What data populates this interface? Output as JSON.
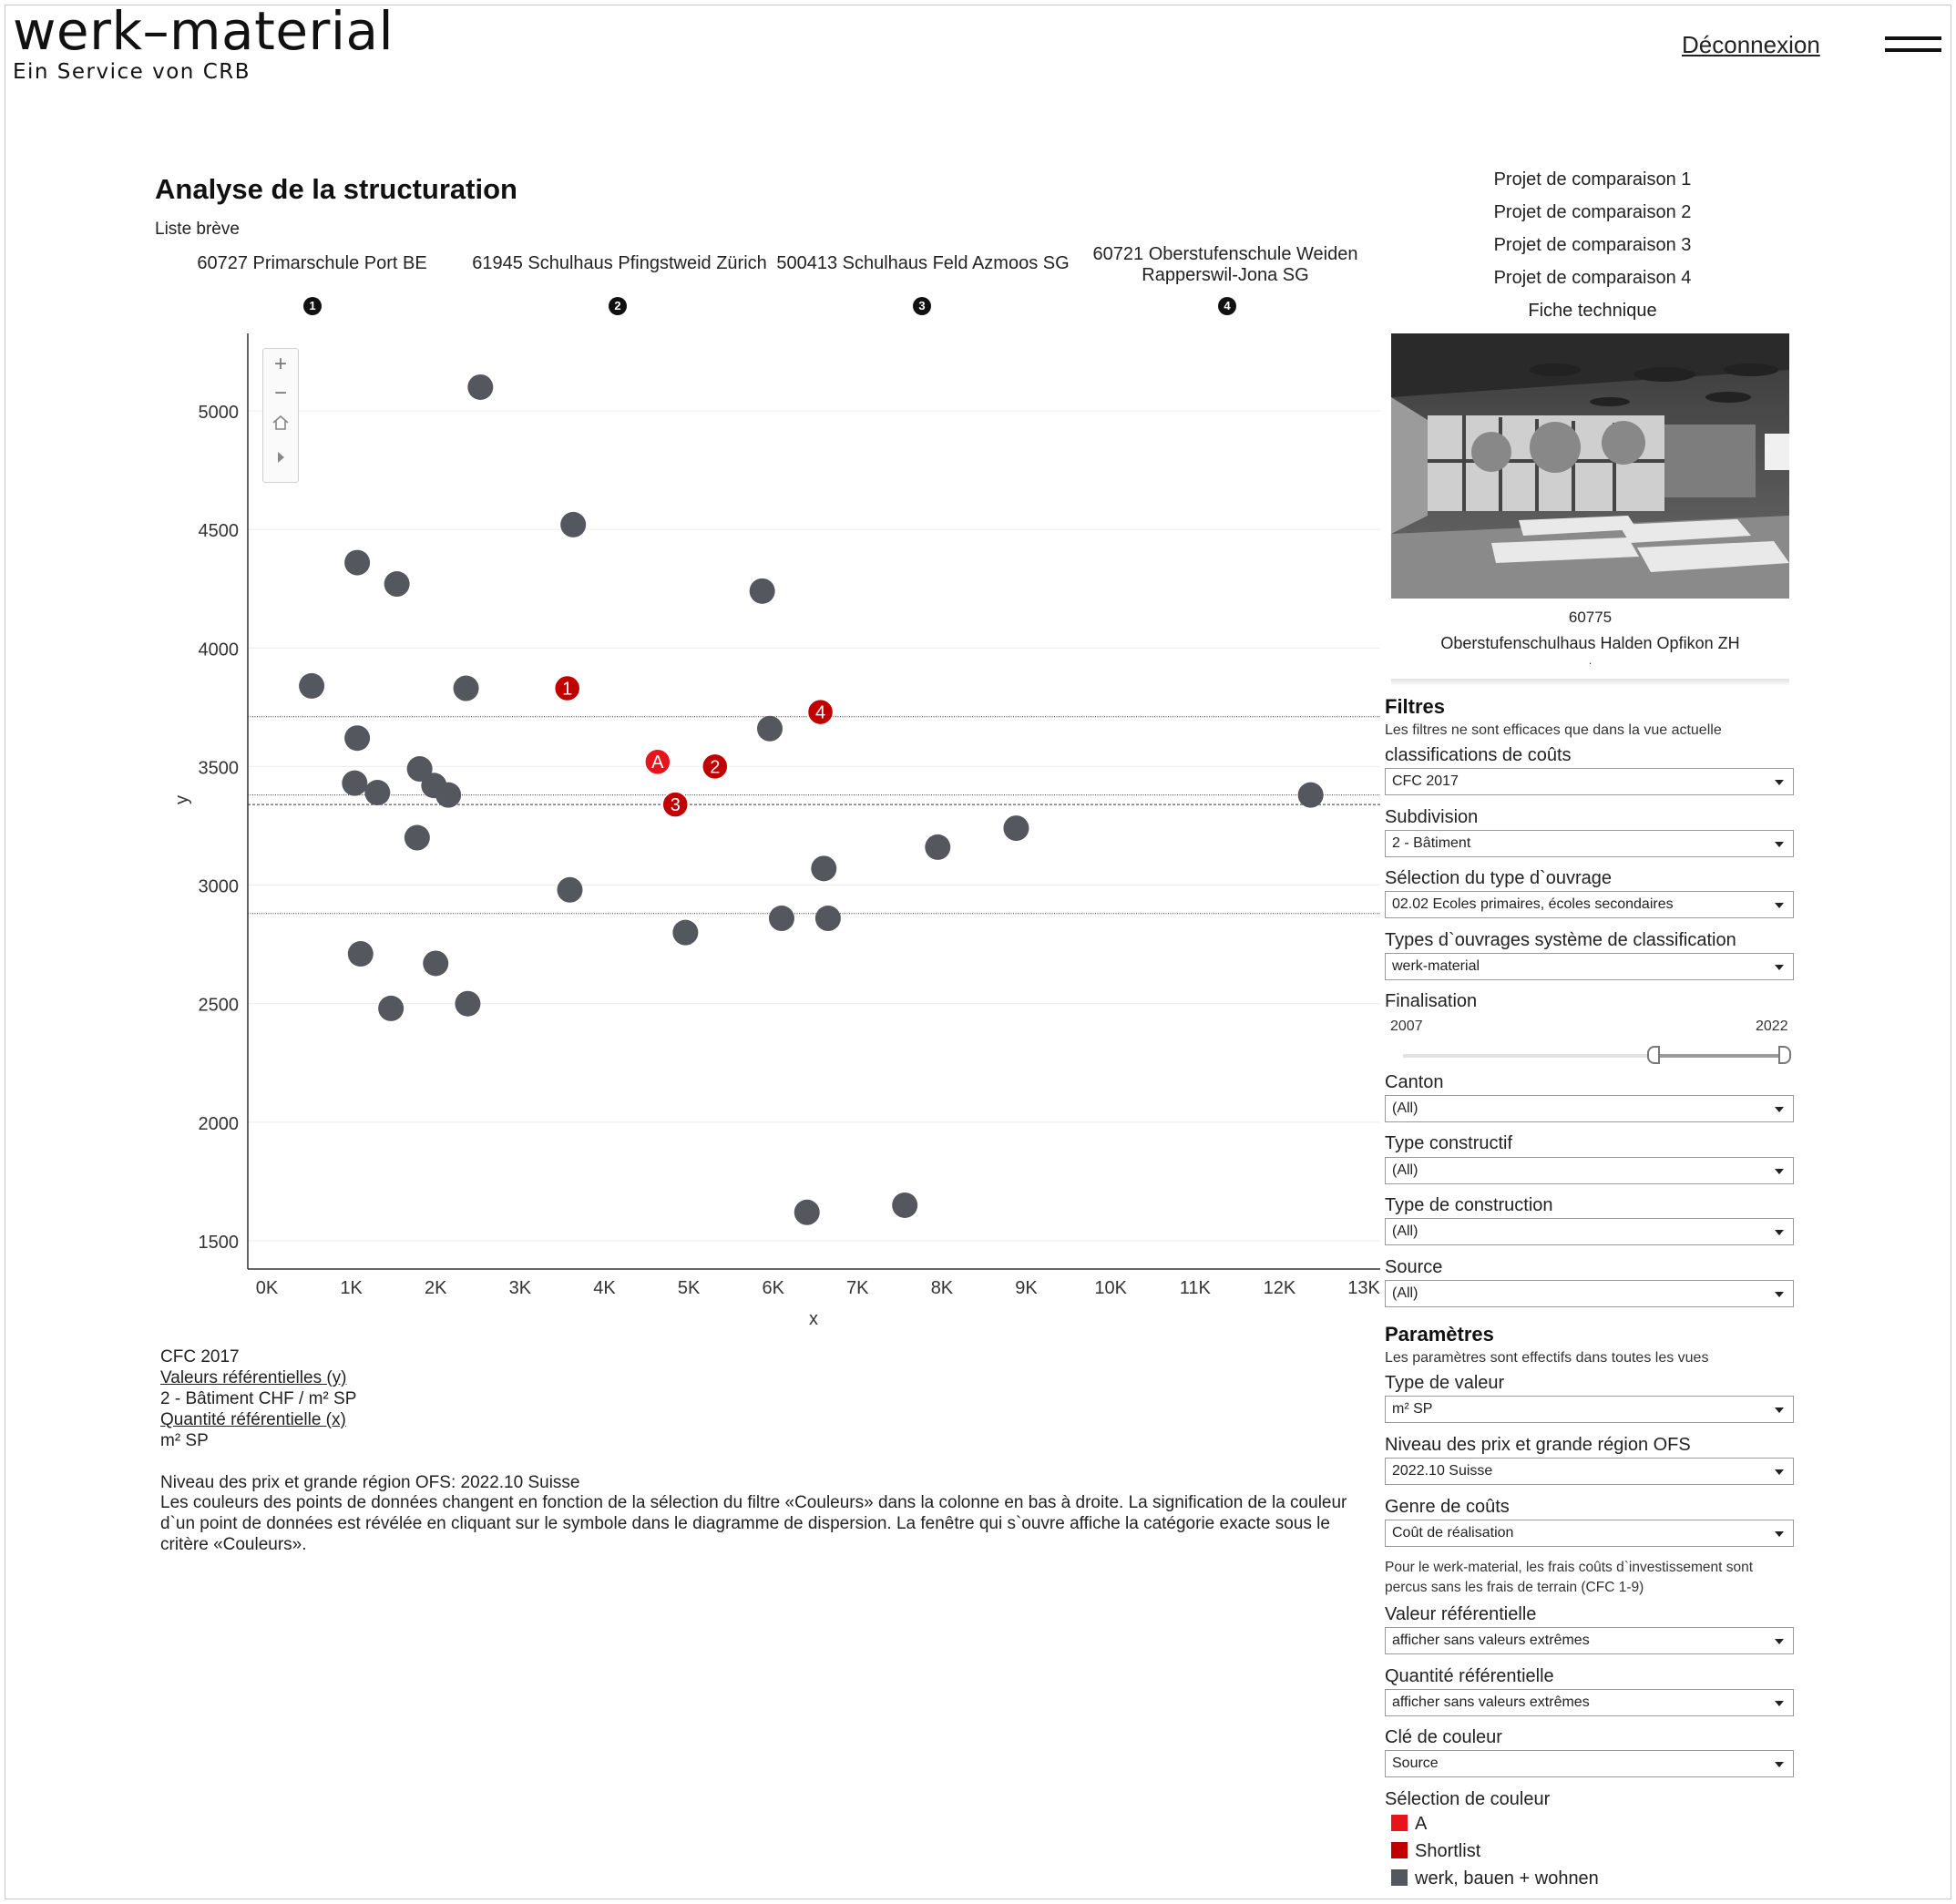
{
  "header": {
    "logo": "werk–material",
    "logo_sub": "Ein Service von CRB",
    "logout": "Déconnexion"
  },
  "page": {
    "title": "Analyse de la structuration",
    "subtitle": "Liste brève"
  },
  "projects": [
    {
      "num": "1",
      "name": "60727 Primarschule Port BE"
    },
    {
      "num": "2",
      "name": "61945 Schulhaus Pfingstweid Zürich"
    },
    {
      "num": "3",
      "name": "500413 Schulhaus Feld Azmoos SG"
    },
    {
      "num": "4",
      "name_line1": "60721 Oberstufenschule Weiden",
      "name_line2": "Rapperswil-Jona SG"
    }
  ],
  "compare_links": [
    "Projet de comparaison 1",
    "Projet de comparaison 2",
    "Projet de comparaison 3",
    "Projet de comparaison 4",
    "Fiche technique"
  ],
  "selected_project": {
    "id": "60775",
    "name": "Oberstufenschulhaus Halden Opfikon ZH",
    "dot": "."
  },
  "filters": {
    "heading": "Filtres",
    "note": "Les filtres ne sont efficaces que dans la vue actuelle",
    "classification_label": "classifications de coûts",
    "classification_value": "CFC 2017",
    "subdivision_label": "Subdivision",
    "subdivision_value": "2 - Bâtiment",
    "type_ouvrage_label": "Sélection du type d`ouvrage",
    "type_ouvrage_value": "02.02 Ecoles primaires, écoles secondaires",
    "system_label": "Types d`ouvrages système de classification",
    "system_value": "werk-material",
    "finalisation_label": "Finalisation",
    "year_min": "2007",
    "year_max": "2022",
    "canton_label": "Canton",
    "canton_value": "(All)",
    "type_constructif_label": "Type constructif",
    "type_constructif_value": "(All)",
    "type_construction_label": "Type de construction",
    "type_construction_value": "(All)",
    "source_label": "Source",
    "source_value": "(All)"
  },
  "params": {
    "heading": "Paramètres",
    "note": "Les paramètres sont effectifs dans toutes les vues",
    "type_valeur_label": "Type de valeur",
    "type_valeur_value": "m² SP",
    "niveau_label": "Niveau des prix et grande région OFS",
    "niveau_value": "2022.10 Suisse",
    "genre_label": "Genre de coûts",
    "genre_value": "Coût de réalisation",
    "genre_note_1": "Pour le werk-material,  les frais coûts d`investissement sont",
    "genre_note_2": "percus sans les frais de terrain (CFC 1-9)",
    "valeur_ref_label": "Valeur référentielle",
    "valeur_ref_value": "afficher sans valeurs extrêmes",
    "quantite_ref_label": "Quantité référentielle",
    "quantite_ref_value": "afficher sans valeurs extrêmes",
    "cle_label": "Clé de couleur",
    "cle_value": "Source",
    "selection_label": "Sélection de couleur"
  },
  "legend": [
    {
      "label": "A",
      "color": "#e8141b"
    },
    {
      "label": "Shortlist",
      "color": "#c00000"
    },
    {
      "label": "werk, bauen + wohnen",
      "color": "#55575e"
    }
  ],
  "info": {
    "line1": "CFC 2017",
    "line2": "Valeurs référentielles (y)",
    "line3": "2 - Bâtiment CHF / m² SP",
    "line4": "Quantité référentielle (x)",
    "line5": "m² SP",
    "para1": "Niveau des prix et grande région OFS: 2022.10 Suisse",
    "para2": "Les couleurs  des points de données changent en fonction de la sélection du filtre «Couleurs»  dans la colonne en bas à droite. La signification de la couleur d`un point de données est révélée en cliquant sur le symbole dans le diagramme de dispersion. La fenêtre qui s`ouvre affiche la catégorie exacte sous le critère «Couleurs»."
  },
  "chart_data": {
    "type": "scatter",
    "xlabel": "x",
    "ylabel": "y",
    "xlim": [
      0,
      13000
    ],
    "ylim": [
      1400,
      5300
    ],
    "x_ticks": [
      0,
      1000,
      2000,
      3000,
      4000,
      5000,
      6000,
      7000,
      8000,
      9000,
      10000,
      11000,
      12000,
      13000
    ],
    "x_tick_labels": [
      "0K",
      "1K",
      "2K",
      "3K",
      "4K",
      "5K",
      "6K",
      "7K",
      "8K",
      "9K",
      "10K",
      "11K",
      "12K",
      "13K"
    ],
    "y_ticks": [
      1500,
      2000,
      2500,
      3000,
      3500,
      4000,
      4500,
      5000
    ],
    "y_tick_labels": [
      "1500",
      "2000",
      "2500",
      "3000",
      "3500",
      "4000",
      "4500",
      "5000"
    ],
    "reference_lines_y": [
      3710,
      3380,
      3340,
      2880
    ],
    "colors": {
      "werk": "#55575e",
      "shortlist": "#c00000",
      "a": "#e8141b"
    },
    "points": [
      {
        "x": 2530,
        "y": 5100,
        "s": "werk"
      },
      {
        "x": 3630,
        "y": 4520,
        "s": "werk"
      },
      {
        "x": 1070,
        "y": 4360,
        "s": "werk"
      },
      {
        "x": 1540,
        "y": 4270,
        "s": "werk"
      },
      {
        "x": 5870,
        "y": 4240,
        "s": "werk"
      },
      {
        "x": 530,
        "y": 3840,
        "s": "werk"
      },
      {
        "x": 2360,
        "y": 3830,
        "s": "werk"
      },
      {
        "x": 5960,
        "y": 3660,
        "s": "werk"
      },
      {
        "x": 1070,
        "y": 3620,
        "s": "werk"
      },
      {
        "x": 1810,
        "y": 3490,
        "s": "werk"
      },
      {
        "x": 1040,
        "y": 3430,
        "s": "werk"
      },
      {
        "x": 1310,
        "y": 3390,
        "s": "werk"
      },
      {
        "x": 1980,
        "y": 3420,
        "s": "werk"
      },
      {
        "x": 2150,
        "y": 3380,
        "s": "werk"
      },
      {
        "x": 12370,
        "y": 3380,
        "s": "werk"
      },
      {
        "x": 8880,
        "y": 3240,
        "s": "werk"
      },
      {
        "x": 1780,
        "y": 3200,
        "s": "werk"
      },
      {
        "x": 7950,
        "y": 3160,
        "s": "werk"
      },
      {
        "x": 6600,
        "y": 3070,
        "s": "werk"
      },
      {
        "x": 3590,
        "y": 2980,
        "s": "werk"
      },
      {
        "x": 6100,
        "y": 2860,
        "s": "werk"
      },
      {
        "x": 6650,
        "y": 2860,
        "s": "werk"
      },
      {
        "x": 4960,
        "y": 2800,
        "s": "werk"
      },
      {
        "x": 1110,
        "y": 2710,
        "s": "werk"
      },
      {
        "x": 2000,
        "y": 2670,
        "s": "werk"
      },
      {
        "x": 2380,
        "y": 2500,
        "s": "werk"
      },
      {
        "x": 1470,
        "y": 2480,
        "s": "werk"
      },
      {
        "x": 7560,
        "y": 1650,
        "s": "werk"
      },
      {
        "x": 6400,
        "y": 1620,
        "s": "werk"
      },
      {
        "x": 3560,
        "y": 3830,
        "s": "shortlist",
        "label": "1"
      },
      {
        "x": 5310,
        "y": 3500,
        "s": "shortlist",
        "label": "2"
      },
      {
        "x": 4840,
        "y": 3340,
        "s": "shortlist",
        "label": "3"
      },
      {
        "x": 6560,
        "y": 3730,
        "s": "shortlist",
        "label": "4"
      },
      {
        "x": 4630,
        "y": 3520,
        "s": "a",
        "label": "A"
      }
    ]
  }
}
